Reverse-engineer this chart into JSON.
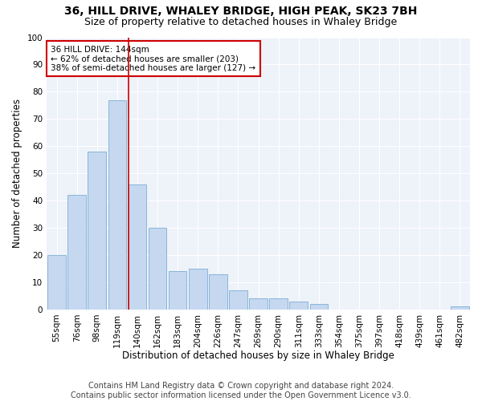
{
  "title1": "36, HILL DRIVE, WHALEY BRIDGE, HIGH PEAK, SK23 7BH",
  "title2": "Size of property relative to detached houses in Whaley Bridge",
  "xlabel": "Distribution of detached houses by size in Whaley Bridge",
  "ylabel": "Number of detached properties",
  "footer1": "Contains HM Land Registry data © Crown copyright and database right 2024.",
  "footer2": "Contains public sector information licensed under the Open Government Licence v3.0.",
  "categories": [
    "55sqm",
    "76sqm",
    "98sqm",
    "119sqm",
    "140sqm",
    "162sqm",
    "183sqm",
    "204sqm",
    "226sqm",
    "247sqm",
    "269sqm",
    "290sqm",
    "311sqm",
    "333sqm",
    "354sqm",
    "375sqm",
    "397sqm",
    "418sqm",
    "439sqm",
    "461sqm",
    "482sqm"
  ],
  "values": [
    20,
    42,
    58,
    77,
    46,
    30,
    14,
    15,
    13,
    7,
    4,
    4,
    3,
    2,
    0,
    0,
    0,
    0,
    0,
    0,
    1
  ],
  "bar_color": "#c5d8f0",
  "bar_edge_color": "#7bafd4",
  "property_line_color": "#cc0000",
  "annotation_line1": "36 HILL DRIVE: 144sqm",
  "annotation_line2": "← 62% of detached houses are smaller (203)",
  "annotation_line3": "38% of semi-detached houses are larger (127) →",
  "annotation_box_color": "white",
  "annotation_box_edge_color": "#cc0000",
  "ylim": [
    0,
    100
  ],
  "background_color": "#eef2f9",
  "grid_color": "white",
  "title1_fontsize": 10,
  "title2_fontsize": 9,
  "xlabel_fontsize": 8.5,
  "ylabel_fontsize": 8.5,
  "tick_fontsize": 7.5,
  "annotation_fontsize": 7.5,
  "footer_fontsize": 7
}
